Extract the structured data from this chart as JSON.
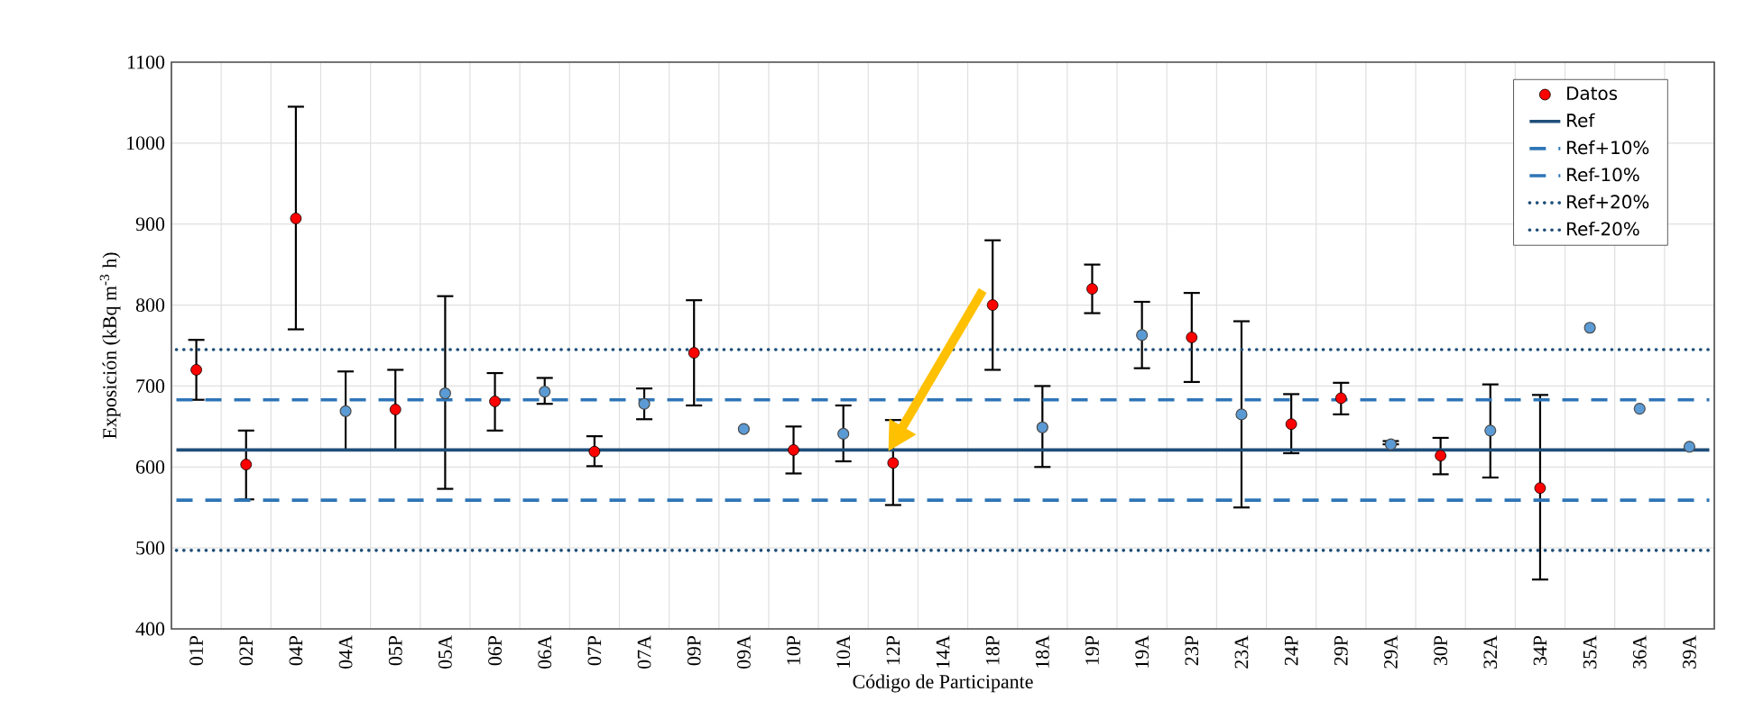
{
  "chart_data": {
    "type": "scatter",
    "xlabel": "Código de Participante",
    "ylabel": "Exposición (kBq m$^{-3}$ h)",
    "categories": [
      "01P",
      "02P",
      "04P",
      "04A",
      "05P",
      "05A",
      "06P",
      "06A",
      "07P",
      "07A",
      "09P",
      "09A",
      "10P",
      "10A",
      "12P",
      "14A",
      "18P",
      "18A",
      "19P",
      "19A",
      "23P",
      "23A",
      "24P",
      "29P",
      "29A",
      "30P",
      "32A",
      "34P",
      "35A",
      "36A",
      "39A"
    ],
    "series": [
      {
        "name": "Datos",
        "color": "#ff0000",
        "values": [
          720,
          603,
          907,
          null,
          671,
          null,
          681,
          null,
          619,
          null,
          741,
          null,
          621,
          null,
          605,
          null,
          800,
          null,
          820,
          null,
          760,
          null,
          653,
          685,
          null,
          614,
          null,
          574,
          null,
          null,
          null
        ],
        "errors": [
          [
            683,
            757
          ],
          [
            560,
            645
          ],
          [
            770,
            1045
          ],
          null,
          [
            621,
            720
          ],
          null,
          [
            645,
            716
          ],
          null,
          [
            601,
            638
          ],
          null,
          [
            676,
            806
          ],
          null,
          [
            592,
            650
          ],
          null,
          [
            553,
            658
          ],
          null,
          [
            720,
            880
          ],
          null,
          [
            790,
            850
          ],
          null,
          [
            705,
            815
          ],
          null,
          [
            617,
            690
          ],
          [
            665,
            704
          ],
          null,
          [
            591,
            636
          ],
          null,
          [
            461,
            689
          ],
          null,
          null,
          null
        ]
      },
      {
        "color": "#5b9bd5",
        "values": [
          null,
          null,
          null,
          669,
          null,
          691,
          null,
          693,
          null,
          678,
          null,
          647,
          null,
          641,
          null,
          null,
          null,
          649,
          null,
          763,
          null,
          665,
          null,
          null,
          628,
          null,
          645,
          null,
          772,
          672,
          625
        ],
        "errors": [
          null,
          null,
          null,
          [
            621,
            718
          ],
          null,
          [
            573,
            811
          ],
          null,
          [
            678,
            710
          ],
          null,
          [
            659,
            697
          ],
          null,
          null,
          null,
          [
            607,
            676
          ],
          null,
          null,
          null,
          [
            600,
            700
          ],
          null,
          [
            722,
            804
          ],
          null,
          [
            550,
            780
          ],
          null,
          null,
          [
            628,
            632
          ],
          null,
          [
            587,
            702
          ],
          null,
          null,
          null,
          null
        ]
      }
    ],
    "ref_lines": [
      {
        "axis": "y",
        "value": 621,
        "label": "Ref",
        "color": "#1f4e79",
        "line_style": "solid"
      },
      {
        "axis": "y",
        "value": 683,
        "label": "Ref+10%",
        "color": "#2e75b6",
        "line_style": "dashed"
      },
      {
        "axis": "y",
        "value": 559,
        "label": "Ref-10%",
        "color": "#2e75b6",
        "line_style": "dashed"
      },
      {
        "axis": "y",
        "value": 745,
        "label": "Ref+20%",
        "color": "#1f4e79",
        "line_style": "dotted"
      },
      {
        "axis": "y",
        "value": 497,
        "label": "Ref-20%",
        "color": "#1f4e79",
        "line_style": "dotted"
      }
    ],
    "ylim": [
      400,
      1100
    ],
    "yticks": [
      400,
      500,
      600,
      700,
      800,
      900,
      1000,
      1100
    ],
    "grid": true,
    "legend": "top right",
    "marker": "circle"
  }
}
